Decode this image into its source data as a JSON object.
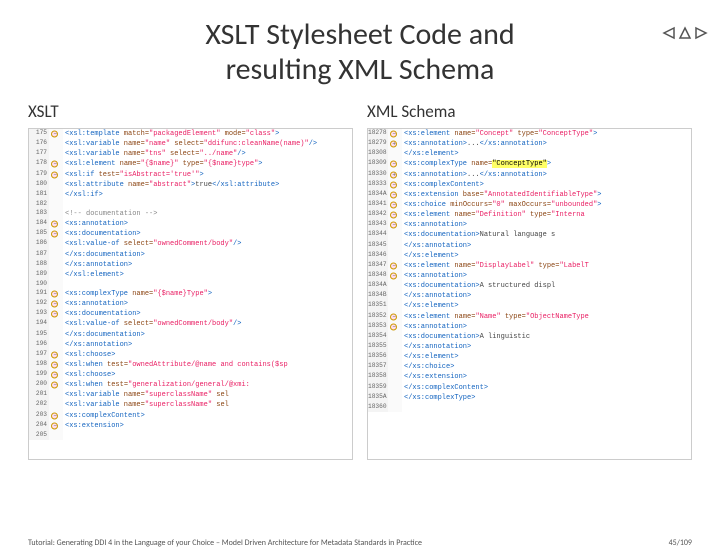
{
  "title_line1": "XSLT Stylesheet Code and",
  "title_line2": "resulting XML Schema",
  "left_label": "XSLT",
  "right_label": "XML Schema",
  "footer_text": "Tutorial: Generating DDI 4 in the Language of your Choice – Model Driven Architecture for Metadata Standards in Practice",
  "page_num": "45/109",
  "nav_icon_color": "#555555",
  "colors": {
    "tag": "#1565c0",
    "attr": "#8B4513",
    "val": "#e91e63",
    "comment": "#888888",
    "highlight_bg": "#ffff66",
    "gutter_bg": "#fafafa",
    "line_num_bg": "#f4f4f4",
    "line_num_fg": "#666666",
    "border": "#cccccc"
  },
  "left_start_line": 175,
  "left_code": [
    {
      "m": "minus",
      "t": [
        [
          "tag",
          "<xsl:template"
        ],
        [
          "attr",
          " match="
        ],
        [
          "val",
          "\"packagedElement\""
        ],
        [
          "attr",
          " mode="
        ],
        [
          "val",
          "\"class\""
        ],
        [
          "tag",
          ">"
        ]
      ]
    },
    {
      "m": "",
      "t": [
        [
          "text",
          "  "
        ],
        [
          "tag",
          "<xsl:variable"
        ],
        [
          "attr",
          " name="
        ],
        [
          "val",
          "\"name\""
        ],
        [
          "attr",
          " select="
        ],
        [
          "val",
          "\"ddifunc:cleanName(name)\""
        ],
        [
          "tag",
          "/>"
        ]
      ]
    },
    {
      "m": "",
      "t": [
        [
          "text",
          "  "
        ],
        [
          "tag",
          "<xsl:variable"
        ],
        [
          "attr",
          " name="
        ],
        [
          "val",
          "\"tns\""
        ],
        [
          "attr",
          " select="
        ],
        [
          "val",
          "\"../name\""
        ],
        [
          "tag",
          "/>"
        ]
      ]
    },
    {
      "m": "minus",
      "t": [
        [
          "text",
          "  "
        ],
        [
          "tag",
          "<xsl:element"
        ],
        [
          "attr",
          " name="
        ],
        [
          "val",
          "\"{$name}\""
        ],
        [
          "attr",
          " type="
        ],
        [
          "val",
          "\"{$name}type\""
        ],
        [
          "tag",
          ">"
        ]
      ]
    },
    {
      "m": "minus",
      "t": [
        [
          "text",
          "    "
        ],
        [
          "tag",
          "<xsl:if"
        ],
        [
          "attr",
          " test="
        ],
        [
          "val",
          "\"isAbstract='true'\""
        ],
        [
          "tag",
          ">"
        ]
      ]
    },
    {
      "m": "",
      "t": [
        [
          "text",
          "      "
        ],
        [
          "tag",
          "<xsl:attribute"
        ],
        [
          "attr",
          " name="
        ],
        [
          "val",
          "\"abstract\""
        ],
        [
          "tag",
          ">"
        ],
        [
          "text",
          "true"
        ],
        [
          "tag",
          "</xsl:attribute>"
        ]
      ]
    },
    {
      "m": "",
      "t": [
        [
          "text",
          "    "
        ],
        [
          "tag",
          "</xsl:if>"
        ]
      ]
    },
    {
      "m": "",
      "t": [
        [
          "text",
          ""
        ]
      ]
    },
    {
      "m": "",
      "t": [
        [
          "text",
          "    "
        ],
        [
          "com",
          "<!-- documentation -->"
        ]
      ]
    },
    {
      "m": "minus",
      "t": [
        [
          "text",
          "    "
        ],
        [
          "tag",
          "<xs:annotation>"
        ]
      ]
    },
    {
      "m": "minus",
      "t": [
        [
          "text",
          "      "
        ],
        [
          "tag",
          "<xs:documentation>"
        ]
      ]
    },
    {
      "m": "",
      "t": [
        [
          "text",
          "        "
        ],
        [
          "tag",
          "<xsl:value-of"
        ],
        [
          "attr",
          " select="
        ],
        [
          "val",
          "\"ownedComment/body\""
        ],
        [
          "tag",
          "/>"
        ]
      ]
    },
    {
      "m": "",
      "t": [
        [
          "text",
          "      "
        ],
        [
          "tag",
          "</xs:documentation>"
        ]
      ]
    },
    {
      "m": "",
      "t": [
        [
          "text",
          "    "
        ],
        [
          "tag",
          "</xs:annotation>"
        ]
      ]
    },
    {
      "m": "",
      "t": [
        [
          "text",
          "  "
        ],
        [
          "tag",
          "</xsl:element>"
        ]
      ]
    },
    {
      "m": "",
      "t": [
        [
          "text",
          ""
        ]
      ]
    },
    {
      "m": "minus",
      "t": [
        [
          "text",
          "  "
        ],
        [
          "tag",
          "<xs:complexType"
        ],
        [
          "attr",
          "  name="
        ],
        [
          "val",
          "\"{$name}Type\""
        ],
        [
          "tag",
          ">"
        ]
      ]
    },
    {
      "m": "minus",
      "t": [
        [
          "text",
          "    "
        ],
        [
          "tag",
          "<xs:annotation>"
        ]
      ]
    },
    {
      "m": "minus",
      "t": [
        [
          "text",
          "      "
        ],
        [
          "tag",
          "<xs:documentation>"
        ]
      ]
    },
    {
      "m": "",
      "t": [
        [
          "text",
          "        "
        ],
        [
          "tag",
          "<xsl:value-of"
        ],
        [
          "attr",
          " select="
        ],
        [
          "val",
          "\"ownedComment/body\""
        ],
        [
          "tag",
          "/>"
        ]
      ]
    },
    {
      "m": "",
      "t": [
        [
          "text",
          "      "
        ],
        [
          "tag",
          "</xs:documentation>"
        ]
      ]
    },
    {
      "m": "",
      "t": [
        [
          "text",
          "    "
        ],
        [
          "tag",
          "</xs:annotation>"
        ]
      ]
    },
    {
      "m": "minus",
      "t": [
        [
          "text",
          "    "
        ],
        [
          "tag",
          "<xsl:choose>"
        ]
      ]
    },
    {
      "m": "minus",
      "t": [
        [
          "text",
          "      "
        ],
        [
          "tag",
          "<xsl:when"
        ],
        [
          "attr",
          " test="
        ],
        [
          "val",
          "\"ownedAttribute/@name and contains($sp"
        ]
      ]
    },
    {
      "m": "minus",
      "t": [
        [
          "text",
          "        "
        ],
        [
          "tag",
          "<xsl:choose>"
        ]
      ]
    },
    {
      "m": "minus",
      "t": [
        [
          "text",
          "          "
        ],
        [
          "tag",
          "<xsl:when"
        ],
        [
          "attr",
          " test="
        ],
        [
          "val",
          "\"generalization/general/@xmi:"
        ]
      ]
    },
    {
      "m": "",
      "t": [
        [
          "text",
          "            "
        ],
        [
          "tag",
          "<xsl:variable"
        ],
        [
          "attr",
          " name="
        ],
        [
          "val",
          "\"superclassName\""
        ],
        [
          "attr",
          " sel"
        ]
      ]
    },
    {
      "m": "",
      "t": [
        [
          "text",
          "            "
        ],
        [
          "tag",
          "<xsl:variable"
        ],
        [
          "attr",
          " name="
        ],
        [
          "val",
          "\"superclassName\""
        ],
        [
          "attr",
          " sel"
        ]
      ]
    },
    {
      "m": "minus",
      "t": [
        [
          "text",
          "            "
        ],
        [
          "tag",
          "<xs:complexContent>"
        ]
      ]
    },
    {
      "m": "minus",
      "t": [
        [
          "text",
          "              "
        ],
        [
          "tag",
          "<xs:extension>"
        ]
      ]
    },
    {
      "m": "",
      "t": [
        [
          "text",
          ""
        ]
      ]
    }
  ],
  "right_start_line": 18278,
  "right_line_step": 0,
  "right_lines": [
    "18278",
    "18279",
    "18308",
    "18309",
    "18330",
    "18333",
    "1834A",
    "18341",
    "18342",
    "18343",
    "18344",
    "18345",
    "18346",
    "18347",
    "18348",
    "1834A",
    "1834B",
    "18351",
    "18352",
    "18353",
    "18354",
    "18355",
    "18356",
    "18357",
    "18358",
    "18359",
    "1835A",
    "18360"
  ],
  "right_code": [
    {
      "m": "minus",
      "t": [
        [
          "tag",
          "<xs:element"
        ],
        [
          "attr",
          " name="
        ],
        [
          "val",
          "\"Concept\""
        ],
        [
          "attr",
          " type="
        ],
        [
          "val",
          "\"ConceptType\""
        ],
        [
          "tag",
          ">"
        ]
      ]
    },
    {
      "m": "plus",
      "t": [
        [
          "text",
          "  "
        ],
        [
          "tag",
          "<xs:annotation>"
        ],
        [
          "text",
          "..."
        ],
        [
          "tag",
          "</xs:annotation>"
        ]
      ]
    },
    {
      "m": "",
      "t": [
        [
          "tag",
          "</xs:element>"
        ]
      ]
    },
    {
      "m": "minus",
      "t": [
        [
          "tag",
          "<xs:complexType"
        ],
        [
          "attr",
          " name="
        ],
        [
          "hl",
          "\"ConceptType\""
        ],
        [
          "tag",
          ">"
        ]
      ]
    },
    {
      "m": "plus",
      "t": [
        [
          "text",
          "  "
        ],
        [
          "tag",
          "<xs:annotation>"
        ],
        [
          "text",
          "..."
        ],
        [
          "tag",
          "</xs:annotation>"
        ]
      ]
    },
    {
      "m": "minus",
      "t": [
        [
          "text",
          "  "
        ],
        [
          "tag",
          "<xs:complexContent>"
        ]
      ]
    },
    {
      "m": "minus",
      "t": [
        [
          "text",
          "    "
        ],
        [
          "tag",
          "<xs:extension"
        ],
        [
          "attr",
          " base="
        ],
        [
          "val",
          "\"AnnotatedIdentifiableType\""
        ],
        [
          "tag",
          ">"
        ]
      ]
    },
    {
      "m": "minus",
      "t": [
        [
          "text",
          "      "
        ],
        [
          "tag",
          "<xs:choice"
        ],
        [
          "attr",
          " minOccurs="
        ],
        [
          "val",
          "\"0\""
        ],
        [
          "attr",
          " maxOccurs="
        ],
        [
          "val",
          "\"unbounded\""
        ],
        [
          "tag",
          ">"
        ]
      ]
    },
    {
      "m": "minus",
      "t": [
        [
          "text",
          "        "
        ],
        [
          "tag",
          "<xs:element"
        ],
        [
          "attr",
          " name="
        ],
        [
          "val",
          "\"Definition\""
        ],
        [
          "attr",
          " type="
        ],
        [
          "val",
          "\"Interna"
        ]
      ]
    },
    {
      "m": "minus",
      "t": [
        [
          "text",
          "          "
        ],
        [
          "tag",
          "<xs:annotation>"
        ]
      ]
    },
    {
      "m": "",
      "t": [
        [
          "text",
          "            "
        ],
        [
          "tag",
          "<xs:documentation>"
        ],
        [
          "text",
          "Natural language s"
        ]
      ]
    },
    {
      "m": "",
      "t": [
        [
          "text",
          "          "
        ],
        [
          "tag",
          "</xs:annotation>"
        ]
      ]
    },
    {
      "m": "",
      "t": [
        [
          "text",
          "        "
        ],
        [
          "tag",
          "</xs:element>"
        ]
      ]
    },
    {
      "m": "minus",
      "t": [
        [
          "text",
          "        "
        ],
        [
          "tag",
          "<xs:element"
        ],
        [
          "attr",
          " name="
        ],
        [
          "val",
          "\"DisplayLabel\""
        ],
        [
          "attr",
          " type="
        ],
        [
          "val",
          "\"LabelT"
        ]
      ]
    },
    {
      "m": "minus",
      "t": [
        [
          "text",
          "          "
        ],
        [
          "tag",
          "<xs:annotation>"
        ]
      ]
    },
    {
      "m": "",
      "t": [
        [
          "text",
          "            "
        ],
        [
          "tag",
          "<xs:documentation>"
        ],
        [
          "text",
          "A structured displ"
        ]
      ]
    },
    {
      "m": "",
      "t": [
        [
          "text",
          "          "
        ],
        [
          "tag",
          "</xs:annotation>"
        ]
      ]
    },
    {
      "m": "",
      "t": [
        [
          "text",
          "        "
        ],
        [
          "tag",
          "</xs:element>"
        ]
      ]
    },
    {
      "m": "minus",
      "t": [
        [
          "text",
          "        "
        ],
        [
          "tag",
          "<xs:element"
        ],
        [
          "attr",
          " name="
        ],
        [
          "val",
          "\"Name\""
        ],
        [
          "attr",
          "  type="
        ],
        [
          "val",
          "\"ObjectNameType"
        ]
      ]
    },
    {
      "m": "minus",
      "t": [
        [
          "text",
          "          "
        ],
        [
          "tag",
          "<xs:annotation>"
        ]
      ]
    },
    {
      "m": "",
      "t": [
        [
          "text",
          "            "
        ],
        [
          "tag",
          "<xs:documentation>"
        ],
        [
          "text",
          "A linguistic"
        ]
      ]
    },
    {
      "m": "",
      "t": [
        [
          "text",
          "          "
        ],
        [
          "tag",
          "</xs:annotation>"
        ]
      ]
    },
    {
      "m": "",
      "t": [
        [
          "text",
          "        "
        ],
        [
          "tag",
          "</xs:element>"
        ]
      ]
    },
    {
      "m": "",
      "t": [
        [
          "text",
          "      "
        ],
        [
          "tag",
          "</xs:choice>"
        ]
      ]
    },
    {
      "m": "",
      "t": [
        [
          "text",
          "    "
        ],
        [
          "tag",
          "</xs:extension>"
        ]
      ]
    },
    {
      "m": "",
      "t": [
        [
          "text",
          "  "
        ],
        [
          "tag",
          "</xs:complexContent>"
        ]
      ]
    },
    {
      "m": "",
      "t": [
        [
          "tag",
          "</xs:complexType>"
        ]
      ]
    },
    {
      "m": "",
      "t": [
        [
          "text",
          ""
        ]
      ]
    }
  ]
}
